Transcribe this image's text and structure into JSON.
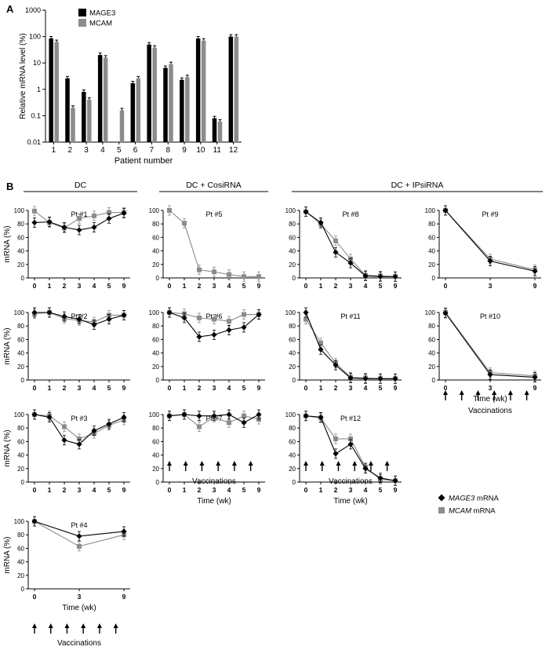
{
  "panels": {
    "a": "A",
    "b": "B"
  },
  "groups": [
    "DC",
    "DC + CosiRNA",
    "DC + IPsiRNA"
  ],
  "legend_b": {
    "mage3": "MAGE3",
    "mcam": "MCAM",
    "suffix": "mRNA"
  },
  "arrows_label": "Vaccinations",
  "colors": {
    "mage3": "#000000",
    "mcam": "#8c8c8c"
  },
  "chart_data": [
    {
      "id": "A",
      "type": "bar",
      "title": "",
      "xlabel": "Patient number",
      "ylabel": "Relative mRNA level (%)",
      "ylog": true,
      "ylim": [
        0.01,
        1000
      ],
      "yticks": [
        "0.01",
        "0.1",
        "1",
        "10",
        "100",
        "1000"
      ],
      "categories": [
        "1",
        "2",
        "3",
        "4",
        "5",
        "6",
        "7",
        "8",
        "9",
        "10",
        "11",
        "12"
      ],
      "series": [
        {
          "name": "MAGE3",
          "values": [
            85,
            2.6,
            0.8,
            20,
            null,
            1.7,
            50,
            6.5,
            2.3,
            85,
            0.08,
            100
          ]
        },
        {
          "name": "MCAM",
          "values": [
            62,
            0.2,
            0.4,
            16,
            0.16,
            2.6,
            38,
            9,
            2.9,
            70,
            0.06,
            100
          ]
        }
      ]
    },
    {
      "id": "pt1",
      "type": "line",
      "title": "Pt #1",
      "ylabel": "mRNA (%)",
      "xlabel": "",
      "ylim": [
        0,
        100
      ],
      "yticks": [
        "0",
        "20",
        "40",
        "60",
        "80",
        "100"
      ],
      "x": [
        "0",
        "1",
        "2",
        "3",
        "4",
        "5",
        "9"
      ],
      "series": [
        {
          "name": "MAGE3",
          "values": [
            82,
            83,
            75,
            71,
            75,
            88,
            96
          ]
        },
        {
          "name": "MCAM",
          "values": [
            99,
            82,
            74,
            88,
            92,
            97,
            97
          ]
        }
      ]
    },
    {
      "id": "pt5",
      "type": "line",
      "title": "Pt #5",
      "ylabel": "",
      "xlabel": "",
      "ylim": [
        0,
        100
      ],
      "yticks": [
        "0",
        "20",
        "40",
        "60",
        "80",
        "100"
      ],
      "x": [
        "0",
        "1",
        "2",
        "3",
        "4",
        "5",
        "9"
      ],
      "series": [
        {
          "name": "MCAM",
          "values": [
            100,
            81,
            12,
            9,
            5,
            2,
            2
          ]
        }
      ]
    },
    {
      "id": "pt8",
      "type": "line",
      "title": "Pt #8",
      "ylabel": "",
      "xlabel": "",
      "ylim": [
        0,
        100
      ],
      "yticks": [
        "0",
        "20",
        "40",
        "60",
        "80",
        "100"
      ],
      "x": [
        "0",
        "1",
        "2",
        "3",
        "4",
        "5",
        "9"
      ],
      "series": [
        {
          "name": "MAGE3",
          "values": [
            98,
            82,
            38,
            22,
            3,
            2,
            2
          ]
        },
        {
          "name": "MCAM",
          "values": [
            98,
            80,
            55,
            28,
            4,
            3,
            2
          ]
        }
      ]
    },
    {
      "id": "pt9",
      "type": "line",
      "title": "Pt #9",
      "ylabel": "",
      "xlabel": "",
      "ylim": [
        0,
        100
      ],
      "yticks": [
        "0",
        "20",
        "40",
        "60",
        "80",
        "100"
      ],
      "x": [
        "0",
        "3",
        "9"
      ],
      "series": [
        {
          "name": "MAGE3",
          "values": [
            100,
            25,
            10
          ]
        },
        {
          "name": "MCAM",
          "values": [
            100,
            28,
            12
          ]
        }
      ]
    },
    {
      "id": "pt2",
      "type": "line",
      "title": "Pt #2",
      "ylabel": "mRNA (%)",
      "xlabel": "",
      "ylim": [
        0,
        100
      ],
      "yticks": [
        "0",
        "20",
        "40",
        "60",
        "80",
        "100"
      ],
      "x": [
        "0",
        "1",
        "2",
        "3",
        "4",
        "5",
        "9"
      ],
      "series": [
        {
          "name": "MAGE3",
          "values": [
            100,
            100,
            94,
            90,
            82,
            90,
            96
          ]
        },
        {
          "name": "MCAM",
          "values": [
            98,
            100,
            91,
            88,
            86,
            96,
            96
          ]
        }
      ]
    },
    {
      "id": "pt6",
      "type": "line",
      "title": "Pt #6",
      "ylabel": "",
      "xlabel": "",
      "ylim": [
        0,
        100
      ],
      "yticks": [
        "0",
        "20",
        "40",
        "60",
        "80",
        "100"
      ],
      "x": [
        "0",
        "1",
        "2",
        "3",
        "4",
        "5",
        "9"
      ],
      "series": [
        {
          "name": "MAGE3",
          "values": [
            100,
            92,
            64,
            67,
            74,
            78,
            97
          ]
        },
        {
          "name": "MCAM",
          "values": [
            100,
            98,
            92,
            90,
            87,
            97,
            97
          ]
        }
      ]
    },
    {
      "id": "pt11",
      "type": "line",
      "title": "Pt #11",
      "ylabel": "",
      "xlabel": "",
      "ylim": [
        0,
        100
      ],
      "yticks": [
        "0",
        "20",
        "40",
        "60",
        "80",
        "100"
      ],
      "x": [
        "0",
        "1",
        "2",
        "3",
        "4",
        "5",
        "9"
      ],
      "series": [
        {
          "name": "MAGE3",
          "values": [
            100,
            45,
            22,
            3,
            2,
            2,
            2
          ]
        },
        {
          "name": "MCAM",
          "values": [
            90,
            55,
            25,
            4,
            3,
            2,
            2
          ]
        }
      ]
    },
    {
      "id": "pt10",
      "type": "line",
      "title": "Pt #10",
      "ylabel": "",
      "xlabel": "Time (wk)",
      "ylim": [
        0,
        100
      ],
      "yticks": [
        "0",
        "20",
        "40",
        "60",
        "80",
        "100"
      ],
      "x": [
        "0",
        "3",
        "9"
      ],
      "series": [
        {
          "name": "MAGE3",
          "values": [
            99,
            8,
            4
          ]
        },
        {
          "name": "MCAM",
          "values": [
            100,
            11,
            6
          ]
        }
      ]
    },
    {
      "id": "pt3",
      "type": "line",
      "title": "Pt #3",
      "ylabel": "mRNA (%)",
      "xlabel": "",
      "ylim": [
        0,
        100
      ],
      "yticks": [
        "0",
        "20",
        "40",
        "60",
        "80",
        "100"
      ],
      "x": [
        "0",
        "1",
        "2",
        "3",
        "4",
        "5",
        "9"
      ],
      "series": [
        {
          "name": "MAGE3",
          "values": [
            100,
            96,
            62,
            56,
            76,
            86,
            96
          ]
        },
        {
          "name": "MCAM",
          "values": [
            100,
            98,
            82,
            64,
            72,
            84,
            92
          ]
        }
      ]
    },
    {
      "id": "pt7",
      "type": "line",
      "title": "Pt #7",
      "ylabel": "",
      "xlabel": "Time (wk)",
      "ylim": [
        0,
        100
      ],
      "yticks": [
        "0",
        "20",
        "40",
        "60",
        "80",
        "100"
      ],
      "x": [
        "0",
        "1",
        "2",
        "3",
        "4",
        "5",
        "9"
      ],
      "series": [
        {
          "name": "MAGE3",
          "values": [
            98,
            100,
            98,
            98,
            100,
            88,
            100
          ]
        },
        {
          "name": "MCAM",
          "values": [
            98,
            100,
            82,
            96,
            88,
            98,
            93
          ]
        }
      ]
    },
    {
      "id": "pt12",
      "type": "line",
      "title": "Pt #12",
      "ylabel": "",
      "xlabel": "Time (wk)",
      "ylim": [
        0,
        100
      ],
      "yticks": [
        "0",
        "20",
        "40",
        "60",
        "80",
        "100"
      ],
      "x": [
        "0",
        "1",
        "2",
        "3",
        "4",
        "5",
        "9"
      ],
      "series": [
        {
          "name": "MAGE3",
          "values": [
            98,
            96,
            42,
            56,
            20,
            6,
            2
          ]
        },
        {
          "name": "MCAM",
          "values": [
            98,
            95,
            64,
            64,
            22,
            4,
            2
          ]
        }
      ]
    },
    {
      "id": "pt4",
      "type": "line",
      "title": "Pt #4",
      "ylabel": "mRNA (%)",
      "xlabel": "Time (wk)",
      "ylim": [
        0,
        100
      ],
      "yticks": [
        "0",
        "20",
        "40",
        "60",
        "80",
        "100"
      ],
      "x": [
        "0",
        "3",
        "9"
      ],
      "series": [
        {
          "name": "MAGE3",
          "values": [
            100,
            78,
            85
          ]
        },
        {
          "name": "MCAM",
          "values": [
            100,
            63,
            80
          ]
        }
      ]
    }
  ]
}
